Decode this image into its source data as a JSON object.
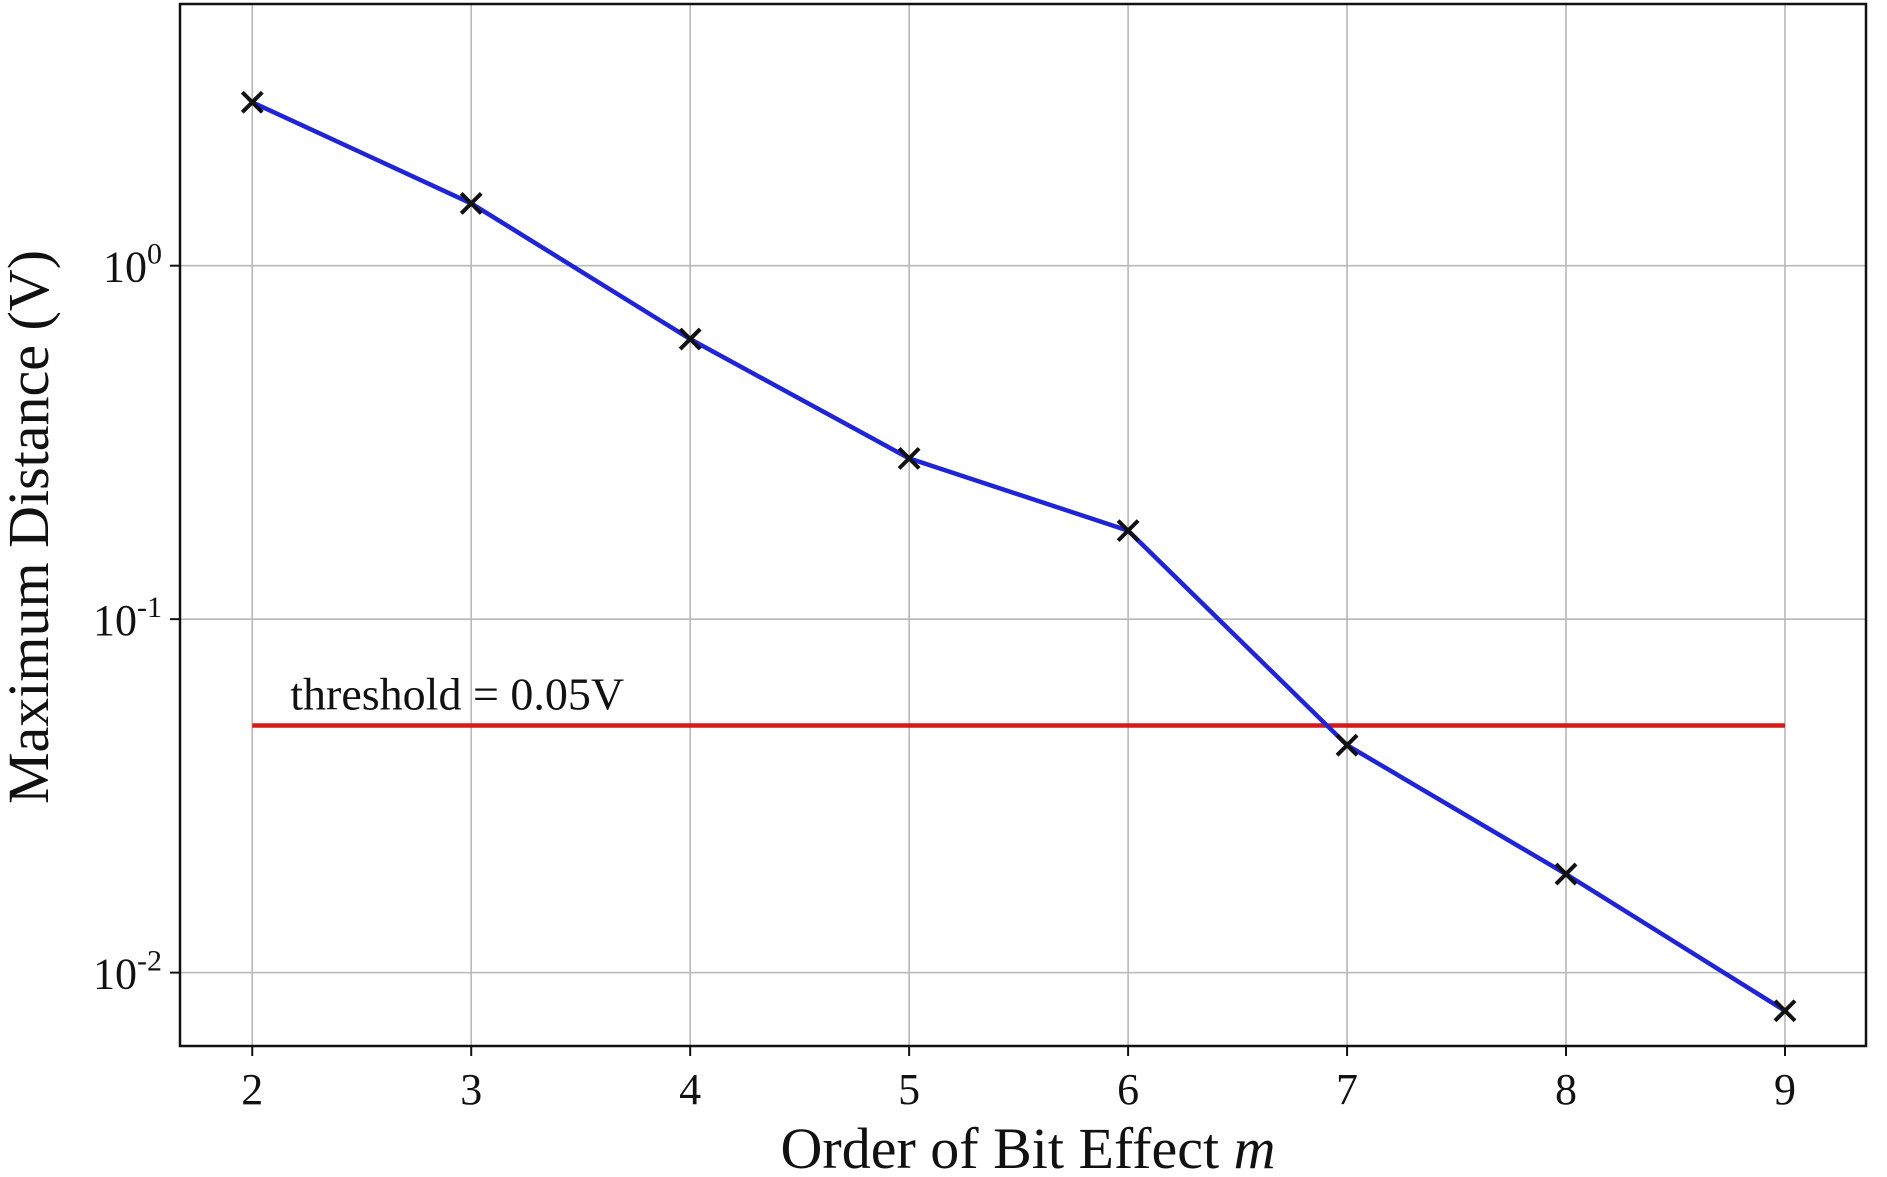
{
  "chart_data": {
    "type": "line",
    "title": "",
    "xlabel": "Order of Bit Effect",
    "xlabel_var": "m",
    "ylabel": "Maximum Distance (V)",
    "yscale": "log",
    "xlim": [
      1.67,
      9.37
    ],
    "ylim": [
      0.0062,
      5.5
    ],
    "grid": true,
    "x_ticks": [
      2,
      3,
      4,
      5,
      6,
      7,
      8,
      9
    ],
    "y_ticks": [
      {
        "value": 1,
        "base": "10",
        "exp": "0"
      },
      {
        "value": 0.1,
        "base": "10",
        "exp": "-1"
      },
      {
        "value": 0.01,
        "base": "10",
        "exp": "-2"
      }
    ],
    "series": [
      {
        "color": "#1f24d6",
        "marker": "x",
        "marker_color": "#111111",
        "x": [
          2,
          3,
          4,
          5,
          6,
          7,
          8,
          9
        ],
        "y": [
          2.9,
          1.5,
          0.62,
          0.285,
          0.178,
          0.044,
          0.019,
          0.0078
        ]
      }
    ],
    "threshold": {
      "value": 0.05,
      "x_range": [
        2,
        9
      ],
      "color": "#d61a1a",
      "label": "threshold = 0.05V"
    }
  }
}
